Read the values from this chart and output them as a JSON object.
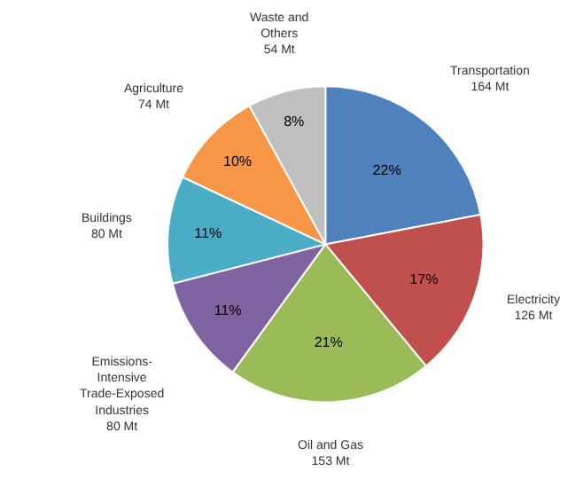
{
  "chart_data": {
    "type": "pie",
    "categories": [
      "Transportation\n164 Mt",
      "Electricity\n126 Mt",
      "Oil and Gas\n153 Mt",
      "Emissions-\nIntensive\nTrade-Exposed\nIndustries\n80 Mt",
      "Buildings\n80 Mt",
      "Agriculture\n74 Mt",
      "Waste and\nOthers\n54 Mt"
    ],
    "values": [
      22,
      17,
      21,
      11,
      11,
      10,
      8
    ],
    "value_labels": [
      "22%",
      "17%",
      "21%",
      "11%",
      "11%",
      "10%",
      "8%"
    ],
    "colors": [
      "#4f81bd",
      "#c0504d",
      "#9bbb59",
      "#8064a2",
      "#4bacc6",
      "#f79646",
      "#bfbfbf"
    ]
  }
}
